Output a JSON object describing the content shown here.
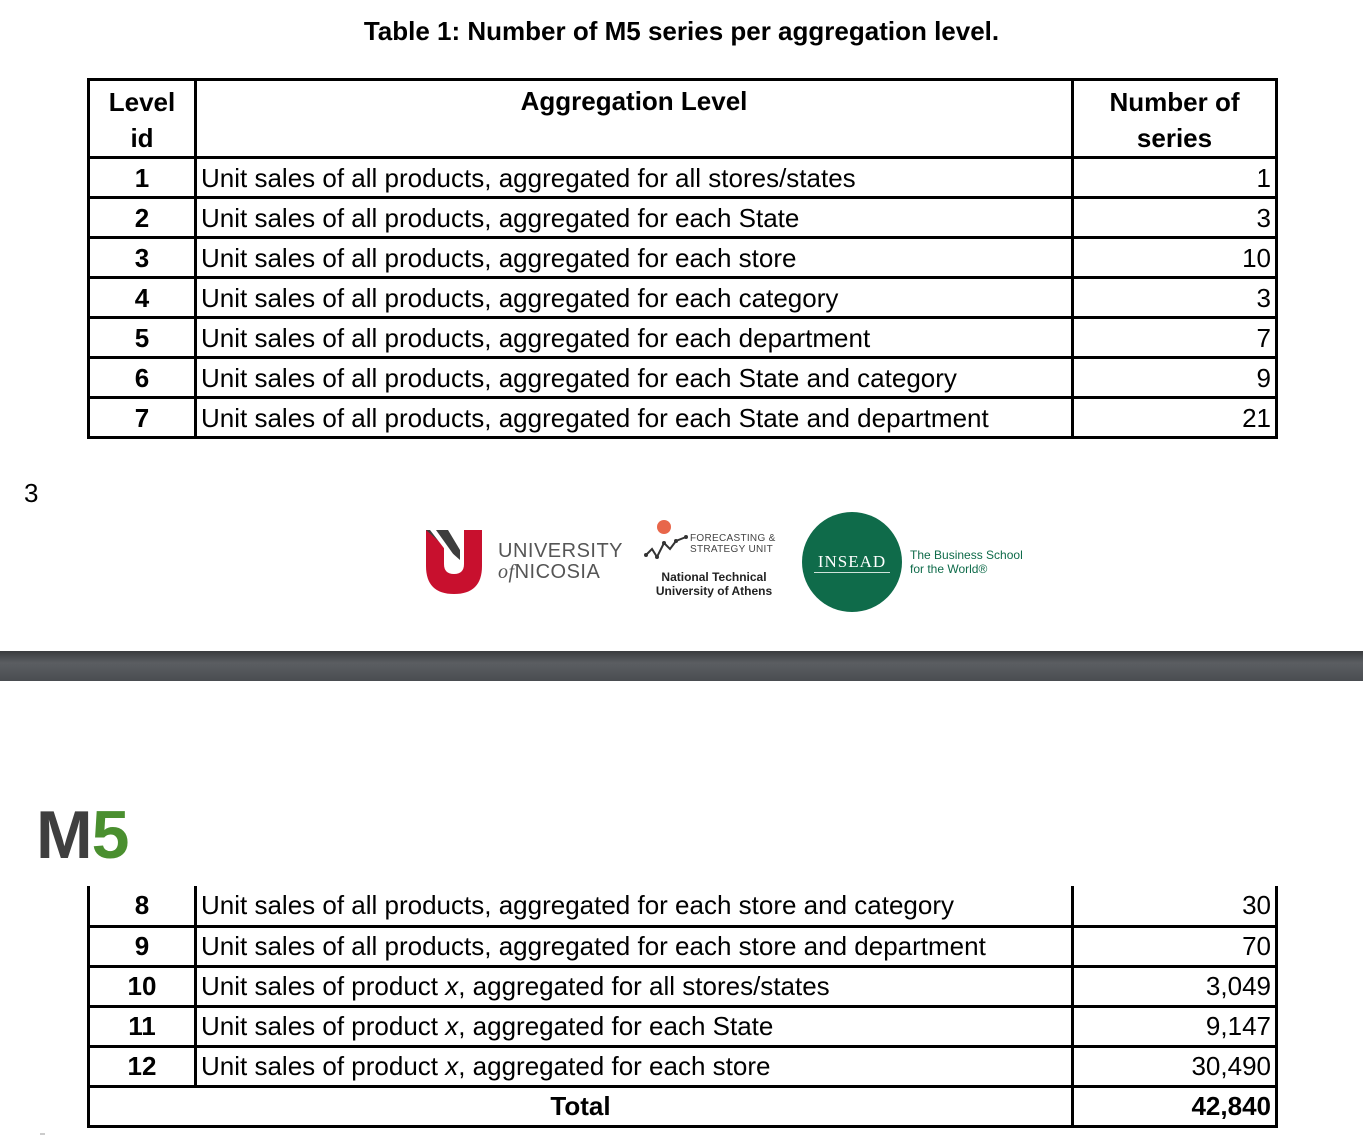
{
  "caption": "Table 1: Number of M5 series per aggregation level.",
  "headers": {
    "level_id": "Level id",
    "aggregation_level": "Aggregation Level",
    "number_of_series": "Number of series"
  },
  "rows_top": [
    {
      "id": "1",
      "desc": "Unit sales of all products, aggregated for all stores/states",
      "n": "1"
    },
    {
      "id": "2",
      "desc": "Unit sales of all products, aggregated for each State",
      "n": "3"
    },
    {
      "id": "3",
      "desc": "Unit sales of all products, aggregated for each store",
      "n": "10"
    },
    {
      "id": "4",
      "desc": "Unit sales of all products, aggregated for each category",
      "n": "3"
    },
    {
      "id": "5",
      "desc": "Unit sales of all products, aggregated for each department",
      "n": "7"
    },
    {
      "id": "6",
      "desc": "Unit sales of all products, aggregated for each State and category",
      "n": "9"
    },
    {
      "id": "7",
      "desc": "Unit sales of all products, aggregated for each State and department",
      "n": "21"
    }
  ],
  "page_number": "3",
  "logos": {
    "unic_line1": "UNIVERSITY",
    "unic_of": "of",
    "unic_line2": "NICOSIA",
    "fsu_line1": "FORECASTING &",
    "fsu_line2": "STRATEGY UNIT",
    "ntua_line1": "National Technical",
    "ntua_line2": "University of Athens",
    "insead": "INSEAD",
    "insead_tag1": "The Business School",
    "insead_tag2": "for the World®"
  },
  "m5_logo": {
    "m": "M",
    "five": "5"
  },
  "rows_bottom": [
    {
      "id": "8",
      "desc": "Unit sales of all products, aggregated for each store and category",
      "n": "30"
    },
    {
      "id": "9",
      "desc": "Unit sales of all products, aggregated for each store and department",
      "n": "70"
    },
    {
      "id": "10",
      "desc_pre": "Unit sales of product ",
      "desc_var": "x",
      "desc_post": ", aggregated for all stores/states",
      "n": "3,049"
    },
    {
      "id": "11",
      "desc_pre": "Unit sales of product ",
      "desc_var": "x",
      "desc_post": ", aggregated for each State",
      "n": "9,147"
    },
    {
      "id": "12",
      "desc_pre": "Unit sales of product ",
      "desc_var": "x",
      "desc_post": ", aggregated for each store",
      "n": "30,490"
    }
  ],
  "total": {
    "label": "Total",
    "value": "42,840"
  },
  "colors": {
    "insead_green": "#0f6b4a",
    "unic_red": "#c8102e",
    "m5_green": "#4a8f2f",
    "m5_gray": "#3f3f3f"
  }
}
